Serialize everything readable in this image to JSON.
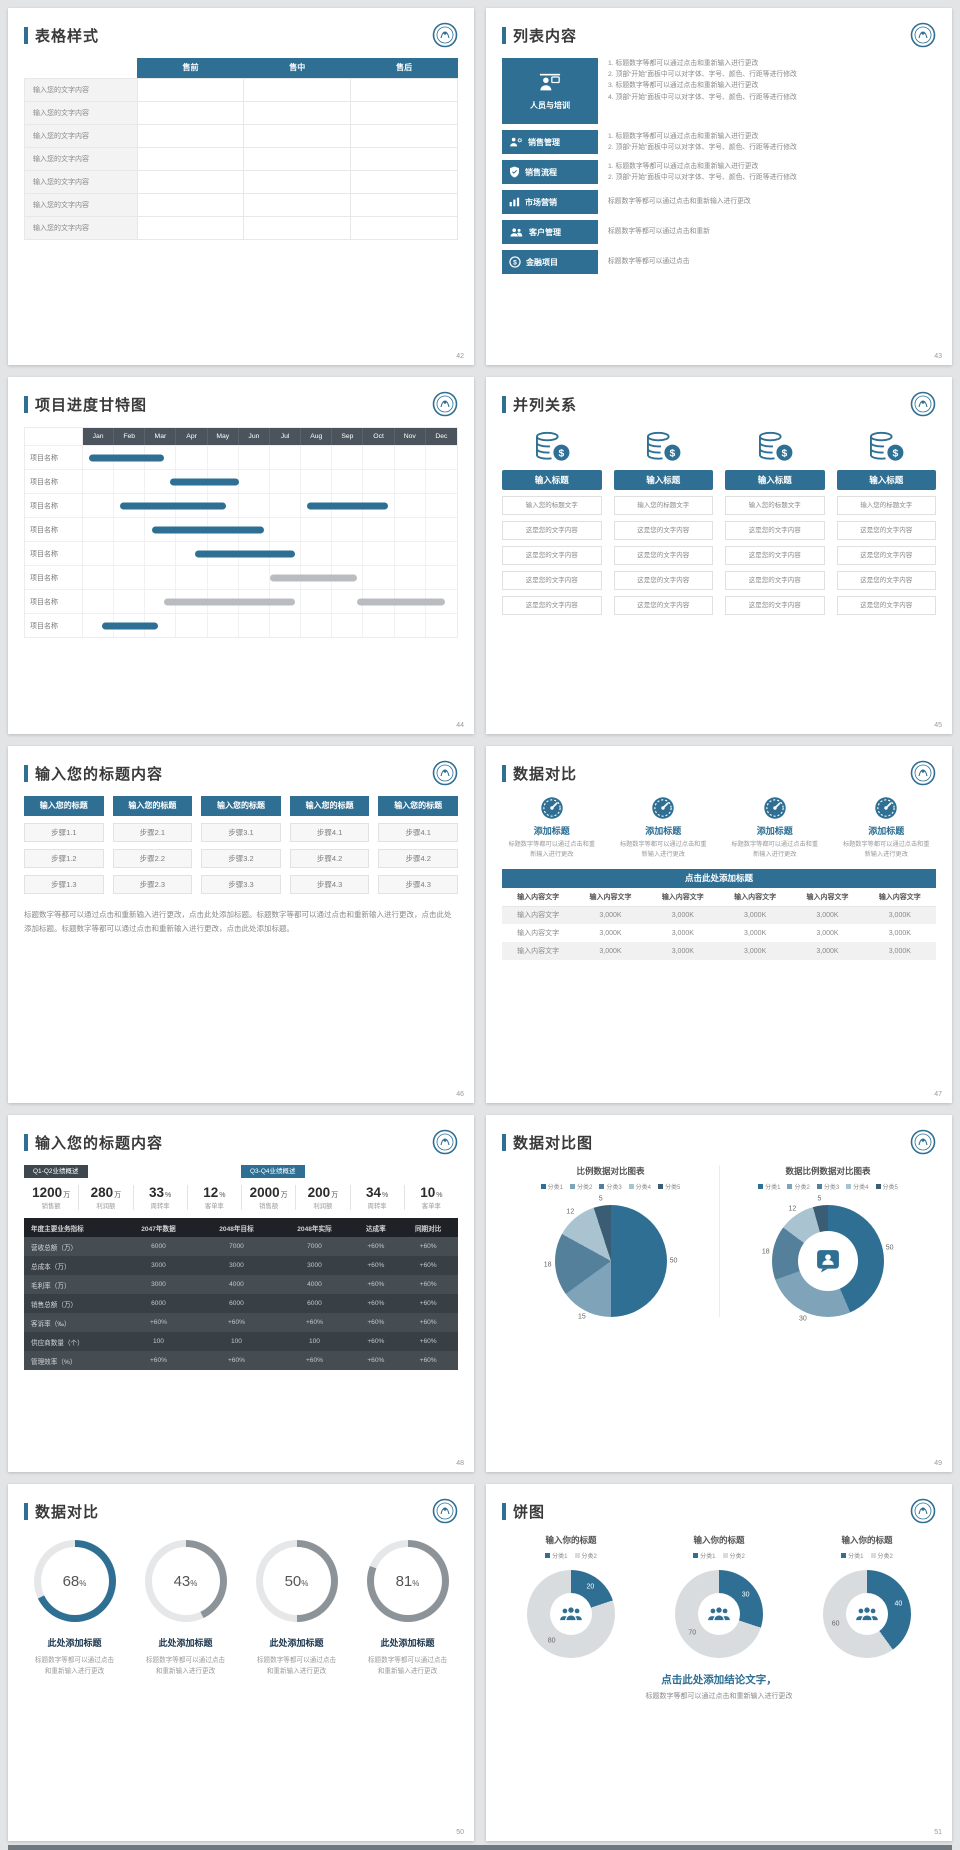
{
  "theme": {
    "primary": "#2e6f93",
    "dark": "#3d474f",
    "gray_bar": "#b9bdc1",
    "background": "#e2e4e6"
  },
  "slides": {
    "s42": {
      "title": "表格样式",
      "page": "42",
      "table": {
        "col_headers": [
          "售前",
          "售中",
          "售后"
        ],
        "row_label": "输入您的文字内容",
        "row_count": 7
      }
    },
    "s43": {
      "title": "列表内容",
      "page": "43",
      "items": [
        {
          "label": "人员与培训",
          "icon": "trainer-icon",
          "big": true,
          "numbered": true,
          "lines": [
            "标题数字等都可以通过点击和重新输入进行更改",
            "顶部“开始”面板中可以对字体、字号、颜色、行距等进行修改",
            "标题数字等都可以通过点击和重新输入进行更改",
            "顶部“开始”面板中可以对字体、字号、颜色、行距等进行修改"
          ]
        },
        {
          "label": "销售管理",
          "icon": "sales-icon",
          "big": false,
          "numbered": true,
          "lines": [
            "标题数字等都可以通过点击和重新输入进行更改",
            "顶部“开始”面板中可以对字体、字号、颜色、行距等进行修改"
          ]
        },
        {
          "label": "销售流程",
          "icon": "process-icon",
          "big": false,
          "numbered": true,
          "lines": [
            "标题数字等都可以通过点击和重新输入进行更改",
            "顶部“开始”面板中可以对字体、字号、颜色、行距等进行修改"
          ]
        },
        {
          "label": "市场营销",
          "icon": "chart-icon",
          "big": false,
          "numbered": false,
          "lines": [
            "标题数字等都可以通过点击和重新输入进行更改"
          ]
        },
        {
          "label": "客户管理",
          "icon": "customer-icon",
          "big": false,
          "numbered": false,
          "lines": [
            "标题数字等都可以通过点击和重新"
          ]
        },
        {
          "label": "金融项目",
          "icon": "finance-icon",
          "big": false,
          "numbered": false,
          "lines": [
            "标题数字等都可以通过点击"
          ]
        }
      ]
    },
    "s44": {
      "title": "项目进度甘特图",
      "page": "44",
      "months": [
        "Jan",
        "Feb",
        "Mar",
        "Apr",
        "May",
        "Jun",
        "Jul",
        "Aug",
        "Sep",
        "Oct",
        "Nov",
        "Dec"
      ],
      "row_label": "项目名称",
      "row_count": 8,
      "bars": [
        {
          "row": 0,
          "start": 0.2,
          "span": 2.4,
          "color": "#2e6f93"
        },
        {
          "row": 1,
          "start": 2.8,
          "span": 2.2,
          "color": "#2e6f93"
        },
        {
          "row": 2,
          "start": 1.2,
          "span": 3.4,
          "color": "#2e6f93"
        },
        {
          "row": 2,
          "start": 7.2,
          "span": 2.6,
          "color": "#2e6f93"
        },
        {
          "row": 3,
          "start": 2.2,
          "span": 3.6,
          "color": "#2e6f93"
        },
        {
          "row": 4,
          "start": 3.6,
          "span": 3.2,
          "color": "#2e6f93"
        },
        {
          "row": 5,
          "start": 6.0,
          "span": 2.8,
          "color": "#b9bdc1"
        },
        {
          "row": 6,
          "start": 2.6,
          "span": 4.2,
          "color": "#b9bdc1"
        },
        {
          "row": 6,
          "start": 8.8,
          "span": 2.8,
          "color": "#b9bdc1"
        },
        {
          "row": 7,
          "start": 0.6,
          "span": 1.8,
          "color": "#2e6f93"
        }
      ]
    },
    "s45": {
      "title": "并列关系",
      "page": "45",
      "columns": [
        {
          "icon": "coins-icon",
          "button": "输入标题",
          "boxes": [
            "输入您的标题文字",
            "这是您的文字内容",
            "这是您的文字内容",
            "这是您的文字内容",
            "这是您的文字内容"
          ]
        },
        {
          "icon": "coins-icon",
          "button": "输入标题",
          "boxes": [
            "输入您的标题文字",
            "这是您的文字内容",
            "这是您的文字内容",
            "这是您的文字内容",
            "这是您的文字内容"
          ]
        },
        {
          "icon": "coins-icon",
          "button": "输入标题",
          "boxes": [
            "输入您的标题文字",
            "这是您的文字内容",
            "这是您的文字内容",
            "这是您的文字内容",
            "这是您的文字内容"
          ]
        },
        {
          "icon": "coins-icon",
          "button": "输入标题",
          "boxes": [
            "输入您的标题文字",
            "这是您的文字内容",
            "这是您的文字内容",
            "这是您的文字内容",
            "这是您的文字内容"
          ]
        }
      ]
    },
    "s46": {
      "title": "输入您的标题内容",
      "page": "46",
      "columns": [
        {
          "header": "输入您的标题",
          "steps": [
            "步骤1.1",
            "步骤1.2",
            "步骤1.3"
          ]
        },
        {
          "header": "输入您的标题",
          "steps": [
            "步骤2.1",
            "步骤2.2",
            "步骤2.3"
          ]
        },
        {
          "header": "输入您的标题",
          "steps": [
            "步骤3.1",
            "步骤3.2",
            "步骤3.3"
          ]
        },
        {
          "header": "输入您的标题",
          "steps": [
            "步骤4.1",
            "步骤4.2",
            "步骤4.3"
          ]
        },
        {
          "header": "输入您的标题",
          "steps": [
            "步骤4.1",
            "步骤4.2",
            "步骤4.3"
          ]
        }
      ],
      "paragraph": "标题数字等都可以通过点击和重新输入进行更改，点击此处添加标题。标题数字等都可以通过点击和重新输入进行更改，点击此处添加标题。标题数字等都可以通过点击和重新输入进行更改，点击此处添加标题。"
    },
    "s47": {
      "title": "数据对比",
      "page": "47",
      "features": [
        {
          "icon": "gauge-icon",
          "title": "添加标题",
          "desc": "标题数字等都可以通过点击和重新输入进行更改"
        },
        {
          "icon": "gauge-icon",
          "title": "添加标题",
          "desc": "标题数字等都可以通过点击和重新输入进行更改"
        },
        {
          "icon": "gauge-icon",
          "title": "添加标题",
          "desc": "标题数字等都可以通过点击和重新输入进行更改"
        },
        {
          "icon": "gauge-icon",
          "title": "添加标题",
          "desc": "标题数字等都可以通过点击和重新输入进行更改"
        }
      ],
      "table": {
        "caption": "点击此处添加标题",
        "headers": [
          "输入内容文字",
          "输入内容文字",
          "输入内容文字",
          "输入内容文字",
          "输入内容文字",
          "输入内容文字"
        ],
        "rows": [
          [
            "输入内容文字",
            "3,000K",
            "3,000K",
            "3,000K",
            "3,000K",
            "3,000K"
          ],
          [
            "输入内容文字",
            "3,000K",
            "3,000K",
            "3,000K",
            "3,000K",
            "3,000K"
          ],
          [
            "输入内容文字",
            "3,000K",
            "3,000K",
            "3,000K",
            "3,000K",
            "3,000K"
          ]
        ]
      }
    },
    "s48": {
      "title": "输入您的标题内容",
      "page": "48",
      "badges": [
        "Q1-Q2业绩概述",
        "Q3-Q4业绩概述"
      ],
      "stats": [
        {
          "value": "1200",
          "unit": "万",
          "label": "销售额"
        },
        {
          "value": "280",
          "unit": "万",
          "label": "利润额"
        },
        {
          "value": "33",
          "unit": "%",
          "label": "周转率"
        },
        {
          "value": "12",
          "unit": "%",
          "label": "客单率"
        },
        {
          "value": "2000",
          "unit": "万",
          "label": "销售额"
        },
        {
          "value": "200",
          "unit": "万",
          "label": "利润额"
        },
        {
          "value": "34",
          "unit": "%",
          "label": "周转率"
        },
        {
          "value": "10",
          "unit": "%",
          "label": "客单率"
        }
      ],
      "table": {
        "headers": [
          "年度主要业务指标",
          "2047年数据",
          "2048年目标",
          "2048年实际",
          "达成率",
          "同期对比"
        ],
        "rows": [
          [
            "营收总额（万）",
            "6000",
            "7000",
            "7000",
            "+60%",
            "+60%"
          ],
          [
            "总成本（万）",
            "3000",
            "3000",
            "3000",
            "+60%",
            "+60%"
          ],
          [
            "毛利率（万）",
            "3000",
            "4000",
            "4000",
            "+60%",
            "+60%"
          ],
          [
            "销售总额（万）",
            "6000",
            "6000",
            "6000",
            "+60%",
            "+60%"
          ],
          [
            "客诉率（‰）",
            "+60%",
            "+60%",
            "+60%",
            "+60%",
            "+60%"
          ],
          [
            "供应商数量（个）",
            "100",
            "100",
            "100",
            "+60%",
            "+60%"
          ],
          [
            "管理效率（%）",
            "+60%",
            "+60%",
            "+60%",
            "+60%",
            "+60%"
          ]
        ]
      }
    },
    "s49": {
      "title": "数据对比图",
      "page": "49",
      "charts": [
        {
          "type": "pie",
          "title": "比例数据对比图表",
          "legend": [
            "分类1",
            "分类2",
            "分类3",
            "分类4",
            "分类5"
          ],
          "values": [
            50,
            15,
            18,
            12,
            5
          ],
          "colors": [
            "#2e6f93",
            "#7fa3b8",
            "#54809b",
            "#a9c3d1",
            "#3a5d74"
          ]
        },
        {
          "type": "donut",
          "title": "数据比例数据对比图表",
          "legend": [
            "分类1",
            "分类2",
            "分类3",
            "分类4",
            "分类5"
          ],
          "values": [
            50,
            30,
            18,
            12,
            5
          ],
          "colors": [
            "#2e6f93",
            "#7fa3b8",
            "#54809b",
            "#a9c3d1",
            "#3a5d74"
          ],
          "center_icon": "person-icon"
        }
      ]
    },
    "s50": {
      "title": "数据对比",
      "page": "50",
      "rings": [
        {
          "percent": 68,
          "color": "#2e6f93",
          "title": "此处添加标题",
          "desc": "标题数字等都可以通过点击和重新输入进行更改"
        },
        {
          "percent": 43,
          "color": "#8d9499",
          "title": "此处添加标题",
          "desc": "标题数字等都可以通过点击和重新输入进行更改"
        },
        {
          "percent": 50,
          "color": "#8d9499",
          "title": "此处添加标题",
          "desc": "标题数字等都可以通过点击和重新输入进行更改"
        },
        {
          "percent": 81,
          "color": "#8d9499",
          "title": "此处添加标题",
          "desc": "标题数字等都可以通过点击和重新输入进行更改"
        }
      ]
    },
    "s51": {
      "title": "饼图",
      "page": "51",
      "pies": [
        {
          "title": "输入你的标题",
          "legend": [
            "分类1",
            "分类2"
          ],
          "values": [
            20,
            80
          ],
          "colors": [
            "#2e6f93",
            "#d9dcde"
          ]
        },
        {
          "title": "输入你的标题",
          "legend": [
            "分类1",
            "分类2"
          ],
          "values": [
            30,
            70
          ],
          "colors": [
            "#2e6f93",
            "#d9dcde"
          ]
        },
        {
          "title": "输入你的标题",
          "legend": [
            "分类1",
            "分类2"
          ],
          "values": [
            40,
            60
          ],
          "colors": [
            "#2e6f93",
            "#d9dcde"
          ]
        }
      ],
      "conclusion_bold": "点击此处添加结论文字，",
      "conclusion_text": "标题数字等都可以通过点击和重新输入进行更改"
    }
  }
}
